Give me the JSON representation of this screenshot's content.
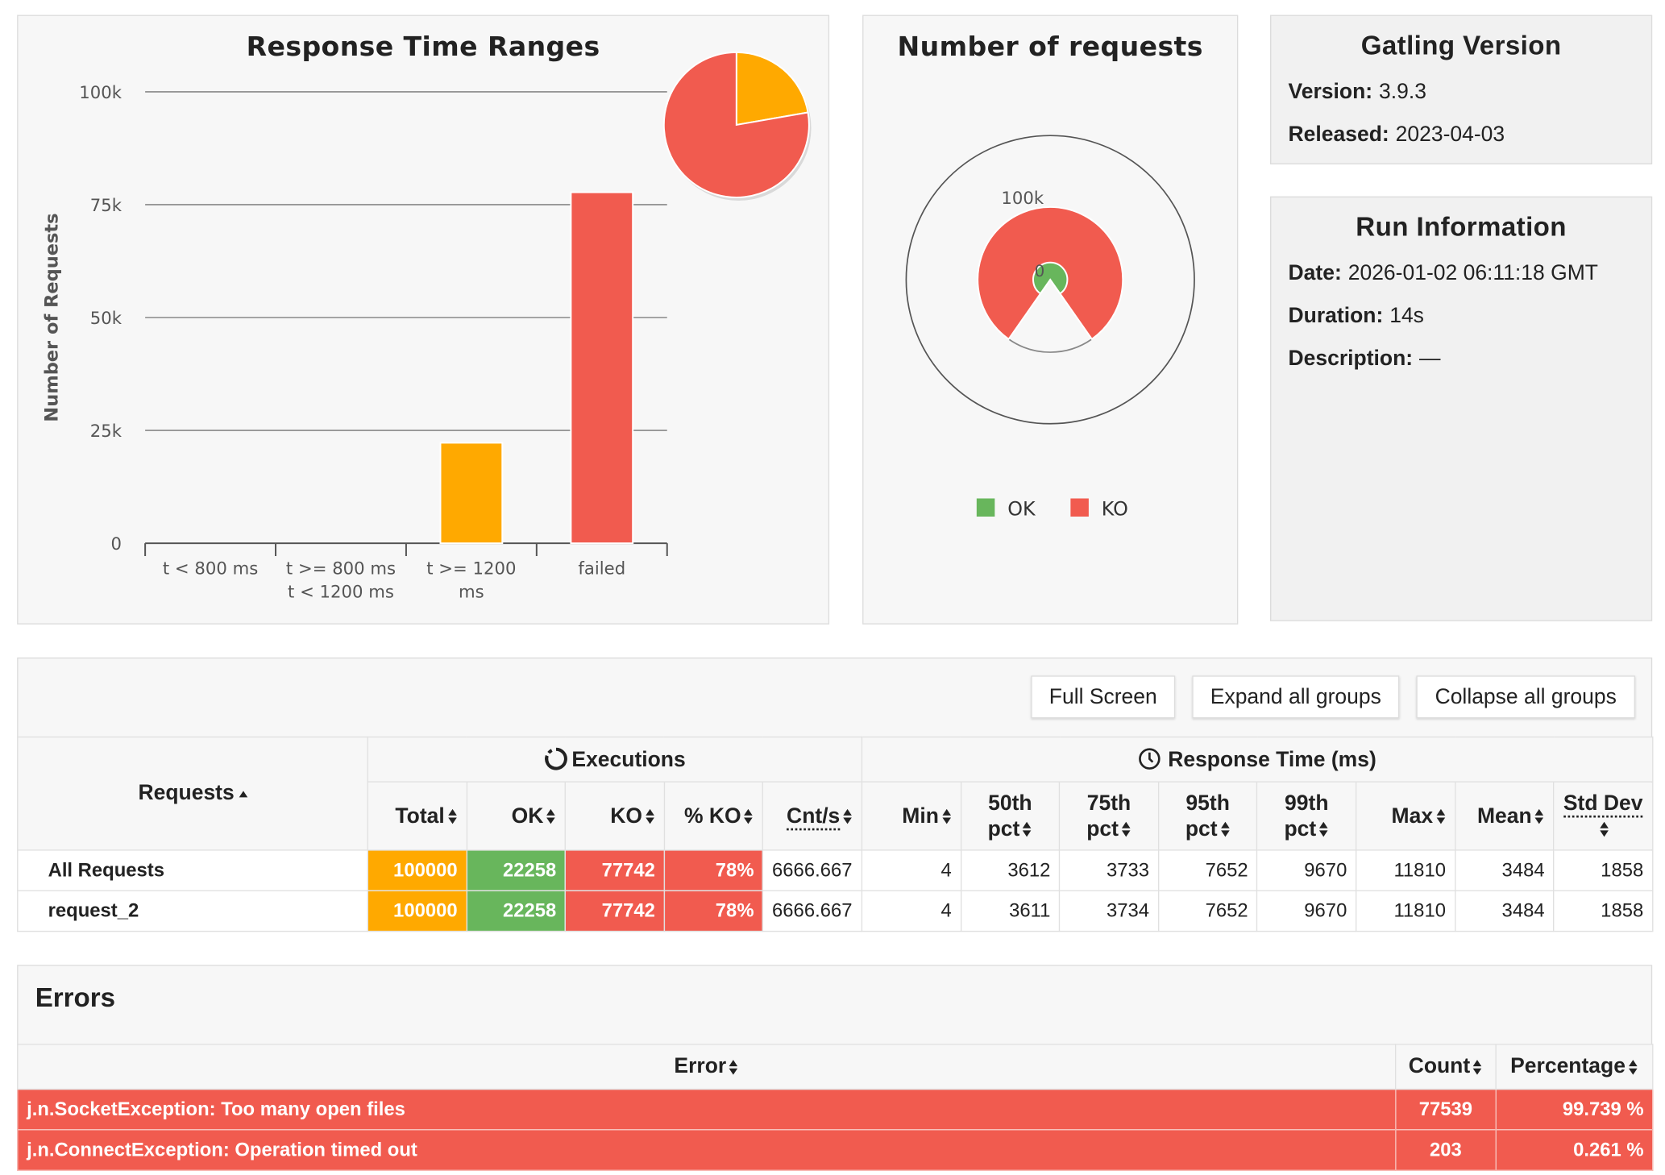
{
  "colors": {
    "ok": "#68b65c",
    "ko": "#f15b4f",
    "orange": "#ffa900"
  },
  "response_time_ranges": {
    "title": "Response Time Ranges"
  },
  "number_of_requests": {
    "title": "Number of requests"
  },
  "chart_data": [
    {
      "type": "bar",
      "title": "Response Time Ranges",
      "ylabel": "Number of Requests",
      "ylim": [
        0,
        100000
      ],
      "yticks": [
        "0",
        "25k",
        "50k",
        "75k",
        "100k"
      ],
      "ytick_values": [
        0,
        25000,
        50000,
        75000,
        100000
      ],
      "categories": [
        [
          "t < 800 ms"
        ],
        [
          "t >= 800 ms",
          "t < 1200 ms"
        ],
        [
          "t >= 1200",
          "ms"
        ],
        [
          "failed"
        ]
      ],
      "values": [
        0,
        0,
        22258,
        77742
      ],
      "bar_colors": [
        "#68b65c",
        "#ffa900",
        "#ffa900",
        "#f15b4f"
      ],
      "inset_pie": {
        "values": [
          22258,
          77742
        ],
        "colors": [
          "#ffa900",
          "#f15b4f"
        ]
      }
    },
    {
      "type": "pie",
      "title": "Number of requests",
      "labels": [
        "100k",
        "0"
      ],
      "series": [
        {
          "name": "OK",
          "value": 22258,
          "color": "#68b65c"
        },
        {
          "name": "KO",
          "value": 77742,
          "color": "#f15b4f"
        }
      ],
      "legend": "bottom"
    }
  ],
  "gatling": {
    "title": "Gatling Version",
    "version_label": "Version:",
    "version": "3.9.3",
    "released_label": "Released:",
    "released": "2023-04-03"
  },
  "run": {
    "title": "Run Information",
    "date_label": "Date:",
    "date": "2026-01-02 06:11:18 GMT",
    "duration_label": "Duration:",
    "duration": "14s",
    "description_label": "Description:",
    "description": "—"
  },
  "buttons": {
    "full_screen": "Full Screen",
    "expand": "Expand all groups",
    "collapse": "Collapse all groups"
  },
  "stats": {
    "requests_header": "Requests",
    "executions_header": "Executions",
    "response_time_header": "Response Time (ms)",
    "columns": [
      "Total",
      "OK",
      "KO",
      "% KO",
      "Cnt/s",
      "Min",
      "50th pct",
      "75th pct",
      "95th pct",
      "99th pct",
      "Max",
      "Mean",
      "Std Dev"
    ],
    "rows": [
      {
        "name": "All Requests",
        "cells": [
          "100000",
          "22258",
          "77742",
          "78%",
          "6666.667",
          "4",
          "3612",
          "3733",
          "7652",
          "9670",
          "11810",
          "3484",
          "1858"
        ]
      },
      {
        "name": "request_2",
        "cells": [
          "100000",
          "22258",
          "77742",
          "78%",
          "6666.667",
          "4",
          "3611",
          "3734",
          "7652",
          "9670",
          "11810",
          "3484",
          "1858"
        ]
      }
    ]
  },
  "errors": {
    "title": "Errors",
    "columns": [
      "Error",
      "Count",
      "Percentage"
    ],
    "rows": [
      {
        "error": "j.n.SocketException: Too many open files",
        "count": "77539",
        "percentage": "99.739 %"
      },
      {
        "error": "j.n.ConnectException: Operation timed out",
        "count": "203",
        "percentage": "0.261 %"
      }
    ]
  }
}
